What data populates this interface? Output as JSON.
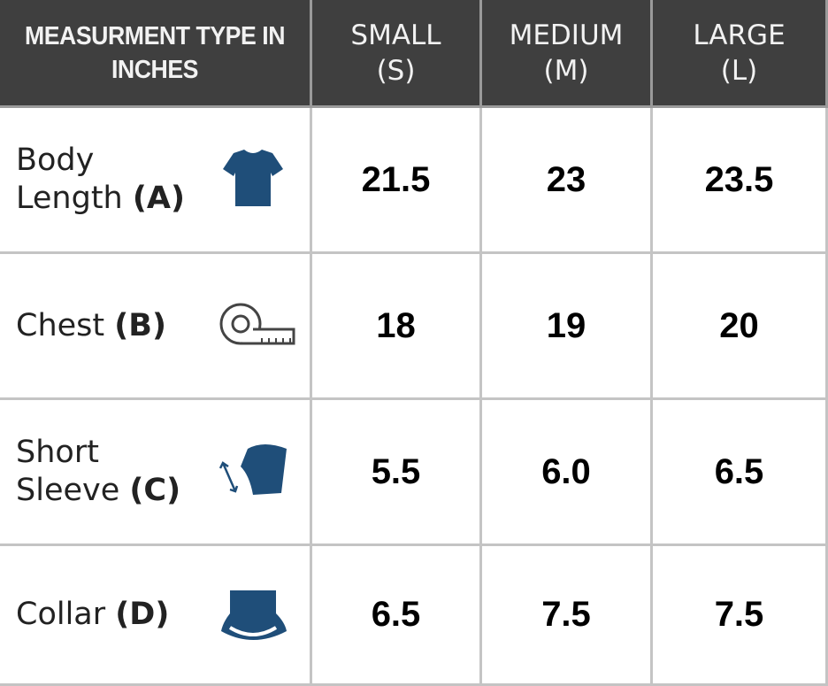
{
  "table": {
    "header": {
      "label": "MEASURMENT TYPE IN INCHES",
      "sizes": [
        {
          "name": "SMALL",
          "abbr": "(S)"
        },
        {
          "name": "MEDIUM",
          "abbr": "(M)"
        },
        {
          "name": "LARGE",
          "abbr": "(L)"
        }
      ]
    },
    "rows": [
      {
        "name": "Body Length",
        "code": "(A)",
        "values": [
          "21.5",
          "23",
          "23.5"
        ]
      },
      {
        "name": "Chest",
        "code": "(B)",
        "values": [
          "18",
          "19",
          "20"
        ]
      },
      {
        "name": "Short Sleeve",
        "code": "(C)",
        "values": [
          "5.5",
          "6.0",
          "6.5"
        ]
      },
      {
        "name": "Collar",
        "code": "(D)",
        "values": [
          "6.5",
          "7.5",
          "7.5"
        ]
      }
    ]
  }
}
